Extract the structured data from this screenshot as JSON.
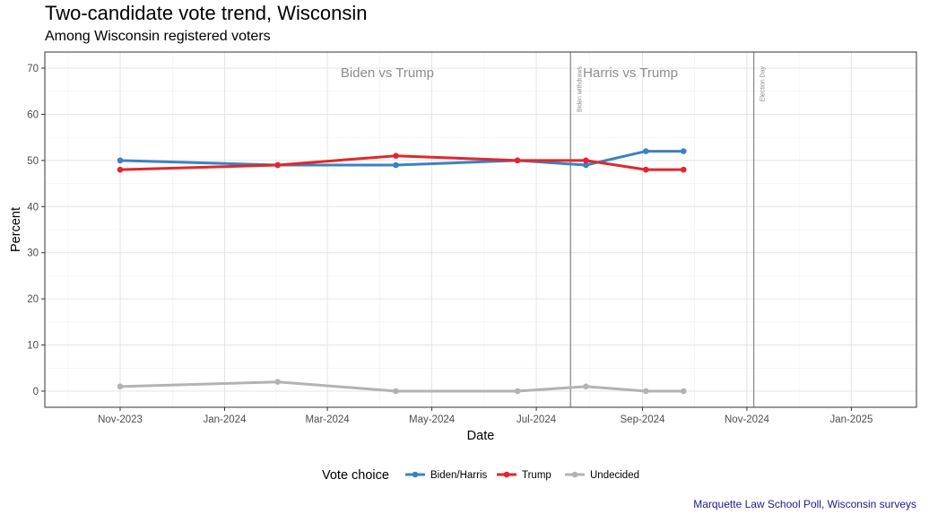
{
  "title": "Two-candidate vote trend, Wisconsin",
  "subtitle": "Among Wisconsin registered voters",
  "caption": "Marquette Law School Poll, Wisconsin surveys",
  "chart_data": {
    "type": "line",
    "xlabel": "Date",
    "ylabel": "Percent",
    "x_type": "date",
    "xlim": [
      "2023-09-18",
      "2025-02-08"
    ],
    "ylim": [
      -3.5,
      73.5
    ],
    "x_ticks": [
      {
        "date": "2023-11-01",
        "label": "Nov-2023"
      },
      {
        "date": "2024-01-01",
        "label": "Jan-2024"
      },
      {
        "date": "2024-03-01",
        "label": "Mar-2024"
      },
      {
        "date": "2024-05-01",
        "label": "May-2024"
      },
      {
        "date": "2024-07-01",
        "label": "Jul-2024"
      },
      {
        "date": "2024-09-01",
        "label": "Sep-2024"
      },
      {
        "date": "2024-11-01",
        "label": "Nov-2024"
      },
      {
        "date": "2025-01-01",
        "label": "Jan-2025"
      }
    ],
    "y_ticks": [
      0,
      10,
      20,
      30,
      40,
      50,
      60,
      70
    ],
    "grid": true,
    "legend": {
      "title": "Vote choice",
      "position": "bottom"
    },
    "x": [
      "2023-11-01",
      "2024-02-01",
      "2024-04-10",
      "2024-06-20",
      "2024-07-30",
      "2024-09-03",
      "2024-09-25"
    ],
    "series": [
      {
        "name": "Biden/Harris",
        "color": "#3a82c4",
        "values": [
          50,
          49,
          49,
          50,
          49,
          52,
          52
        ]
      },
      {
        "name": "Trump",
        "color": "#e3262c",
        "values": [
          48,
          49,
          51,
          50,
          50,
          48,
          48
        ]
      },
      {
        "name": "Undecided",
        "color": "#b3b3b3",
        "values": [
          1,
          2,
          0,
          0,
          1,
          0,
          0
        ]
      }
    ],
    "vlines": [
      {
        "date": "2024-07-21",
        "label": "Biden withdraws"
      },
      {
        "date": "2024-11-05",
        "label": "Election Day"
      }
    ],
    "annotations": [
      {
        "text": "Biden vs Trump",
        "x": "2024-04-05",
        "y": 69
      },
      {
        "text": "Harris vs Trump",
        "x": "2024-08-25",
        "y": 69
      }
    ]
  }
}
